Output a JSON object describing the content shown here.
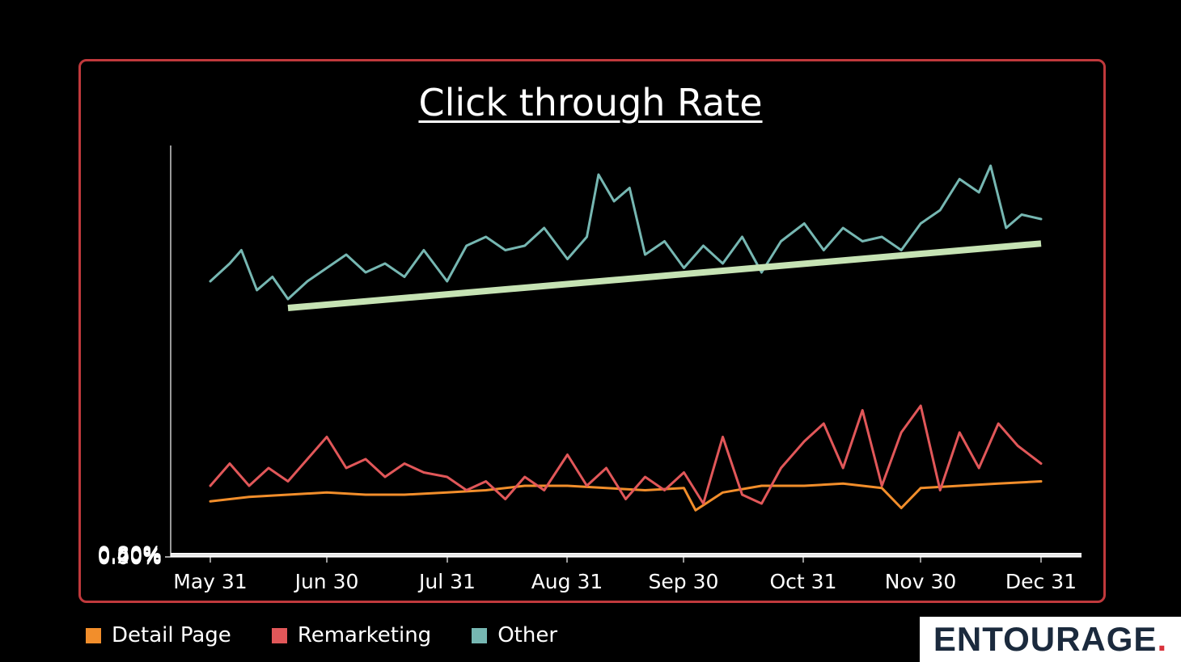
{
  "chart_data": {
    "type": "line",
    "title": "Click through Rate",
    "xlabel": "",
    "ylabel": "",
    "x_ticks": [
      "May 31",
      "Jun 30",
      "Jul 31",
      "Aug 31",
      "Sep 30",
      "Oct 31",
      "Nov 30",
      "Dec 31"
    ],
    "x_range": [
      "2023-05-31",
      "2023-12-31"
    ],
    "y_ticks": [
      "0.00%",
      "0.20%",
      "0.40%",
      "0.60%",
      "0.80%"
    ],
    "ylim": [
      0,
      0.9
    ],
    "grid": "horizontal",
    "legend_position": "bottom-left",
    "series": [
      {
        "name": "Detail Page",
        "color": "#f28e2b",
        "x": [
          "2023-05-31",
          "2023-06-10",
          "2023-06-20",
          "2023-06-30",
          "2023-07-10",
          "2023-07-20",
          "2023-07-31",
          "2023-08-10",
          "2023-08-20",
          "2023-08-31",
          "2023-09-10",
          "2023-09-20",
          "2023-09-30",
          "2023-10-03",
          "2023-10-10",
          "2023-10-20",
          "2023-10-31",
          "2023-11-10",
          "2023-11-20",
          "2023-11-25",
          "2023-11-30",
          "2023-12-10",
          "2023-12-20",
          "2023-12-31"
        ],
        "values": [
          0.125,
          0.135,
          0.14,
          0.145,
          0.14,
          0.14,
          0.145,
          0.15,
          0.16,
          0.16,
          0.155,
          0.15,
          0.155,
          0.105,
          0.145,
          0.16,
          0.16,
          0.165,
          0.155,
          0.11,
          0.155,
          0.16,
          0.165,
          0.17
        ]
      },
      {
        "name": "Remarketing",
        "color": "#e15759",
        "x": [
          "2023-05-31",
          "2023-06-05",
          "2023-06-10",
          "2023-06-15",
          "2023-06-20",
          "2023-06-25",
          "2023-06-30",
          "2023-07-05",
          "2023-07-10",
          "2023-07-15",
          "2023-07-20",
          "2023-07-25",
          "2023-07-31",
          "2023-08-05",
          "2023-08-10",
          "2023-08-15",
          "2023-08-20",
          "2023-08-25",
          "2023-08-31",
          "2023-09-05",
          "2023-09-10",
          "2023-09-15",
          "2023-09-20",
          "2023-09-25",
          "2023-09-30",
          "2023-10-05",
          "2023-10-10",
          "2023-10-15",
          "2023-10-20",
          "2023-10-25",
          "2023-10-31",
          "2023-11-05",
          "2023-11-10",
          "2023-11-15",
          "2023-11-20",
          "2023-11-25",
          "2023-11-30",
          "2023-12-05",
          "2023-12-10",
          "2023-12-15",
          "2023-12-20",
          "2023-12-25",
          "2023-12-31"
        ],
        "values": [
          0.16,
          0.21,
          0.16,
          0.2,
          0.17,
          0.22,
          0.27,
          0.2,
          0.22,
          0.18,
          0.21,
          0.19,
          0.18,
          0.15,
          0.17,
          0.13,
          0.18,
          0.15,
          0.23,
          0.16,
          0.2,
          0.13,
          0.18,
          0.15,
          0.19,
          0.12,
          0.27,
          0.14,
          0.12,
          0.2,
          0.26,
          0.3,
          0.2,
          0.33,
          0.16,
          0.28,
          0.34,
          0.15,
          0.28,
          0.2,
          0.3,
          0.25,
          0.21
        ]
      },
      {
        "name": "Other",
        "color": "#76b7b2",
        "x": [
          "2023-05-31",
          "2023-06-05",
          "2023-06-08",
          "2023-06-12",
          "2023-06-16",
          "2023-06-20",
          "2023-06-25",
          "2023-06-30",
          "2023-07-05",
          "2023-07-10",
          "2023-07-15",
          "2023-07-20",
          "2023-07-25",
          "2023-07-31",
          "2023-08-05",
          "2023-08-10",
          "2023-08-15",
          "2023-08-20",
          "2023-08-25",
          "2023-08-31",
          "2023-09-05",
          "2023-09-08",
          "2023-09-12",
          "2023-09-16",
          "2023-09-20",
          "2023-09-25",
          "2023-09-30",
          "2023-10-05",
          "2023-10-10",
          "2023-10-15",
          "2023-10-20",
          "2023-10-25",
          "2023-10-31",
          "2023-11-05",
          "2023-11-10",
          "2023-11-15",
          "2023-11-20",
          "2023-11-25",
          "2023-11-30",
          "2023-12-05",
          "2023-12-10",
          "2023-12-15",
          "2023-12-18",
          "2023-12-22",
          "2023-12-26",
          "2023-12-31"
        ],
        "values": [
          0.62,
          0.66,
          0.69,
          0.6,
          0.63,
          0.58,
          0.62,
          0.65,
          0.68,
          0.64,
          0.66,
          0.63,
          0.69,
          0.62,
          0.7,
          0.72,
          0.69,
          0.7,
          0.74,
          0.67,
          0.72,
          0.86,
          0.8,
          0.83,
          0.68,
          0.71,
          0.65,
          0.7,
          0.66,
          0.72,
          0.64,
          0.71,
          0.75,
          0.69,
          0.74,
          0.71,
          0.72,
          0.69,
          0.75,
          0.78,
          0.85,
          0.82,
          0.88,
          0.74,
          0.77,
          0.76
        ]
      }
    ],
    "trendline": {
      "color": "#c6e3b4",
      "x": [
        "2023-06-20",
        "2023-12-31"
      ],
      "values": [
        0.56,
        0.705
      ]
    }
  },
  "legend": {
    "items": [
      {
        "label": "Detail Page",
        "color": "#f28e2b"
      },
      {
        "label": "Remarketing",
        "color": "#e15759"
      },
      {
        "label": "Other",
        "color": "#76b7b2"
      }
    ]
  },
  "brand": {
    "name": "ENTOURAGE",
    "dot": "."
  },
  "colors": {
    "background": "#000000",
    "frame": "#c0393c",
    "grid": "#ffffff",
    "text": "#ffffff"
  }
}
